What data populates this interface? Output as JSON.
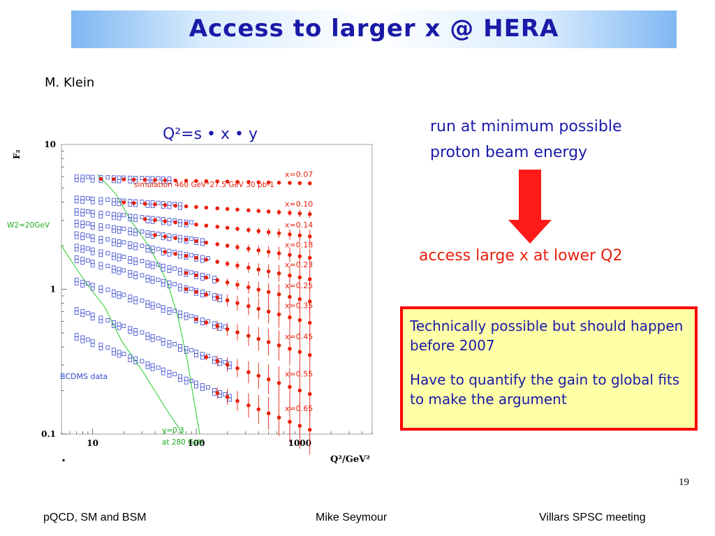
{
  "slide": {
    "title": "Access to larger x @ HERA",
    "author": "M. Klein",
    "formula": "Q²=s • x • y",
    "note_lines": [
      "run at minimum possible",
      "proton beam energy"
    ],
    "conclusion": "access large x at lower Q2",
    "box_paragraphs": [
      "Technically possible but should happen before 2007",
      "Have to quantify the gain to global fits to make the argument"
    ],
    "page_number": "19",
    "footer": {
      "left": "pQCD, SM and BSM",
      "center": "Mike Seymour",
      "right": "Villars SPSC meeting"
    },
    "colors": {
      "title": "#1a1aa8",
      "accent_red": "#e8200c",
      "box_fill": "#ffffa8",
      "bcdms_blue": "#3344cc",
      "curve_green": "#22cc22"
    }
  },
  "chart_data": {
    "type": "scatter",
    "xlabel": "Q²/GeV²",
    "ylabel": "F₂",
    "xscale": "log",
    "yscale": "log",
    "xlim": [
      5,
      5000
    ],
    "ylim": [
      0.1,
      10
    ],
    "x_ticks": [
      "10",
      "100",
      "1000"
    ],
    "y_ticks": [
      "10",
      "1",
      "0.1"
    ],
    "annotations": {
      "simulation": "simulation 460 GeV*27.5 GeV 30 pb-1",
      "w2": "W2=20GeV",
      "bcdms": "BCDMS data",
      "y_line_1": "y=0.3",
      "y_line_2": "at 280 GeV",
      "dot": "."
    },
    "series": [
      {
        "name": "x=0.07",
        "F2": 5.6,
        "q2_min": 12
      },
      {
        "name": "x=0.10",
        "F2": 3.7,
        "q2_min": 20
      },
      {
        "name": "x=0.14",
        "F2": 2.8,
        "q2_min": 30
      },
      {
        "name": "x=0.18",
        "F2": 2.15,
        "q2_min": 40
      },
      {
        "name": "x=0.23",
        "F2": 1.65,
        "q2_min": 50
      },
      {
        "name": "x=0.25",
        "F2": 1.25,
        "q2_min": 65
      },
      {
        "name": "x=0.35",
        "F2": 0.96,
        "q2_min": 80
      },
      {
        "name": "x=0.45",
        "F2": 0.62,
        "q2_min": 100
      },
      {
        "name": "x=0.55",
        "F2": 0.36,
        "q2_min": 120
      },
      {
        "name": "x=0.65",
        "F2": 0.22,
        "q2_min": 140
      }
    ]
  }
}
